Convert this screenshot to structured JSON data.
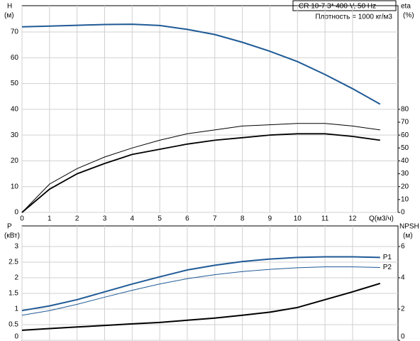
{
  "chart_data": [
    {
      "type": "line",
      "title": "CR 10-7    3* 400 V, 50 Hz",
      "subtitle": "Плотность = 1000 кг/м3",
      "ylabel": [
        "H",
        "(м)"
      ],
      "y2label": [
        "eta",
        "(%)"
      ],
      "xlabel": "Q(м3/ч)",
      "x": [
        0,
        1,
        2,
        3,
        4,
        5,
        6,
        7,
        8,
        9,
        10,
        11,
        12,
        13
      ],
      "xlim": [
        0,
        13.65
      ],
      "xticks": [
        0,
        1,
        2,
        3,
        4,
        5,
        6,
        7,
        8,
        9,
        10,
        11,
        12
      ],
      "show_xtick_labels": true,
      "ylim": [
        0,
        80.2
      ],
      "yticks": [
        0,
        10,
        20,
        30,
        40,
        50,
        60,
        70
      ],
      "y2lim": [
        0,
        160.4
      ],
      "y2ticks": [
        0,
        10,
        20,
        30,
        40,
        50,
        60,
        70,
        80
      ],
      "grid": true,
      "series": [
        {
          "color": "#1f5a96",
          "width": 2,
          "values": [
            72,
            72.3,
            72.6,
            72.9,
            73,
            72.5,
            71,
            69,
            66,
            62.5,
            58.5,
            53.5,
            48,
            42
          ]
        },
        {
          "color": "#000000",
          "width": 1,
          "axis": "y2",
          "values": [
            0,
            22,
            34,
            43,
            50,
            56,
            61,
            64,
            67,
            68,
            69,
            69,
            67,
            64
          ]
        },
        {
          "color": "#000000",
          "width": 1.8,
          "axis": "y2",
          "values": [
            0,
            18,
            30,
            38,
            45,
            49,
            53,
            56,
            58,
            60,
            61,
            61,
            59,
            56
          ]
        }
      ]
    },
    {
      "type": "line",
      "ylabel": [
        "P",
        "(кВт)"
      ],
      "y2label": [
        "NPSH",
        "(м)"
      ],
      "x": [
        0,
        1,
        2,
        3,
        4,
        5,
        6,
        7,
        8,
        9,
        10,
        11,
        12,
        13
      ],
      "xlim": [
        0,
        13.65
      ],
      "xticks": [
        0,
        1,
        2,
        3,
        4,
        5,
        6,
        7,
        8,
        9,
        10,
        11,
        12
      ],
      "show_xtick_labels": false,
      "ylim": [
        0,
        3.66
      ],
      "yticks": [
        0,
        0.5,
        1,
        1.5,
        2,
        2.5,
        3
      ],
      "y2lim": [
        0,
        7.32
      ],
      "y2ticks": [
        0,
        2,
        4,
        6
      ],
      "grid": true,
      "series": [
        {
          "name": "P1",
          "color": "#1f5a96",
          "width": 2,
          "values": [
            0.95,
            1.1,
            1.3,
            1.55,
            1.8,
            2.03,
            2.25,
            2.4,
            2.52,
            2.6,
            2.65,
            2.67,
            2.67,
            2.65
          ]
        },
        {
          "name": "P2",
          "color": "#1f5a96",
          "width": 1,
          "values": [
            0.8,
            0.95,
            1.15,
            1.38,
            1.6,
            1.8,
            1.97,
            2.1,
            2.2,
            2.27,
            2.32,
            2.35,
            2.35,
            2.33
          ]
        },
        {
          "color": "#000000",
          "width": 2,
          "axis": "y2",
          "values": [
            0.64,
            0.75,
            0.85,
            0.95,
            1.05,
            1.14,
            1.28,
            1.42,
            1.6,
            1.8,
            2.1,
            2.6,
            3.1,
            3.64
          ]
        }
      ]
    }
  ]
}
